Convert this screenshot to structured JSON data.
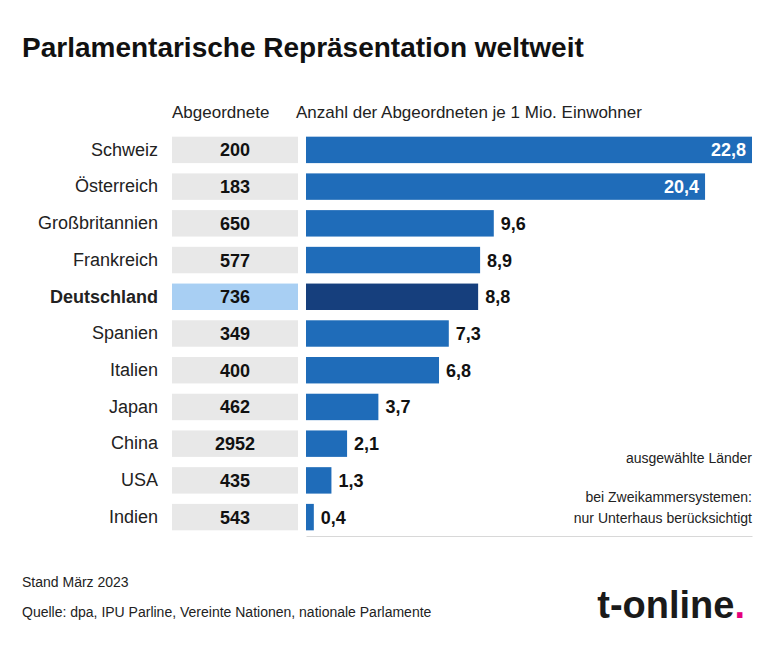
{
  "chart_data": {
    "type": "bar",
    "orientation": "horizontal",
    "title": "Parlamentarische Repräsentation weltweit",
    "column_headers": [
      "Abgeordnete",
      "Anzahl der Abgeordneten je 1 Mio. Einwohner"
    ],
    "categories": [
      "Schweiz",
      "Österreich",
      "Großbritannien",
      "Frankreich",
      "Deutschland",
      "Spanien",
      "Italien",
      "Japan",
      "China",
      "USA",
      "Indien"
    ],
    "deputies": [
      200,
      183,
      650,
      577,
      736,
      349,
      400,
      462,
      2952,
      435,
      543
    ],
    "values": [
      22.8,
      20.4,
      9.6,
      8.9,
      8.8,
      7.3,
      6.8,
      3.7,
      2.1,
      1.3,
      0.4
    ],
    "value_labels": [
      "22,8",
      "20,4",
      "9,6",
      "8,9",
      "8,8",
      "7,3",
      "6,8",
      "3,7",
      "2,1",
      "1,3",
      "0,4"
    ],
    "colors": [
      "#1f6cb9",
      "#1f6cb9",
      "#1f6cb9",
      "#1f6cb9",
      "#163f7d",
      "#1f6cb9",
      "#1f6cb9",
      "#1f6cb9",
      "#1f6cb9",
      "#1f6cb9",
      "#1f6cb9"
    ],
    "xlim": [
      0,
      22.8
    ],
    "tick_labels": false,
    "grid": false,
    "data_labels": true,
    "annotations": [
      "ausgewählte Länder",
      "bei Zweikammersystemen:",
      "nur Unterhaus berücksichtigt"
    ],
    "footer": [
      "Stand März 2023",
      "Quelle: dpa, IPU Parline, Vereinte Nationen, nationale Parlamente"
    ],
    "logo": "t-online."
  }
}
